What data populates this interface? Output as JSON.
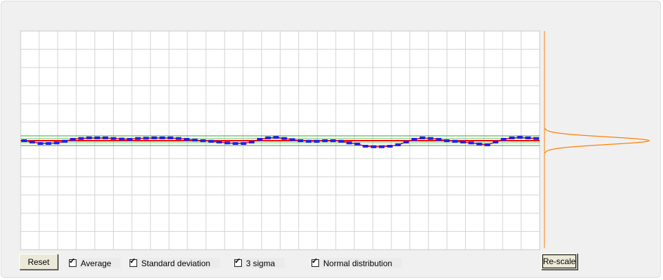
{
  "controls": {
    "reset_label": "Reset",
    "rescale_label": "Re-scale",
    "checkboxes": [
      {
        "label": "Average",
        "checked": true
      },
      {
        "label": "Standard deviation",
        "checked": true
      },
      {
        "label": "3 sigma",
        "checked": true
      },
      {
        "label": "Normal distribution",
        "checked": true
      }
    ],
    "check_glyph": "✓"
  },
  "chart_data": {
    "type": "line",
    "grid": true,
    "colors": {
      "average": "#ff0000",
      "points": "#2020ee",
      "sigma": "#33aa33",
      "distribution": "#ff8000",
      "grid": "#d3d3d3"
    },
    "series": [
      {
        "values": [
          0.0,
          -0.05,
          -0.1,
          -0.1,
          -0.08,
          -0.02,
          0.05,
          0.08,
          0.1,
          0.1,
          0.1,
          0.08,
          0.06,
          0.05,
          0.08,
          0.09,
          0.1,
          0.1,
          0.1,
          0.08,
          0.05,
          0.02,
          0.0,
          -0.02,
          -0.05,
          -0.08,
          -0.1,
          -0.1,
          -0.05,
          0.05,
          0.1,
          0.12,
          0.08,
          0.04,
          0.0,
          -0.02,
          -0.02,
          0.0,
          0.0,
          -0.02,
          -0.08,
          -0.12,
          -0.2,
          -0.22,
          -0.22,
          -0.2,
          -0.15,
          -0.05,
          0.05,
          0.1,
          0.08,
          0.05,
          0.0,
          -0.02,
          -0.05,
          -0.08,
          -0.12,
          -0.15,
          -0.05,
          0.05,
          0.1,
          0.12,
          0.1,
          0.08
        ]
      }
    ]
  }
}
